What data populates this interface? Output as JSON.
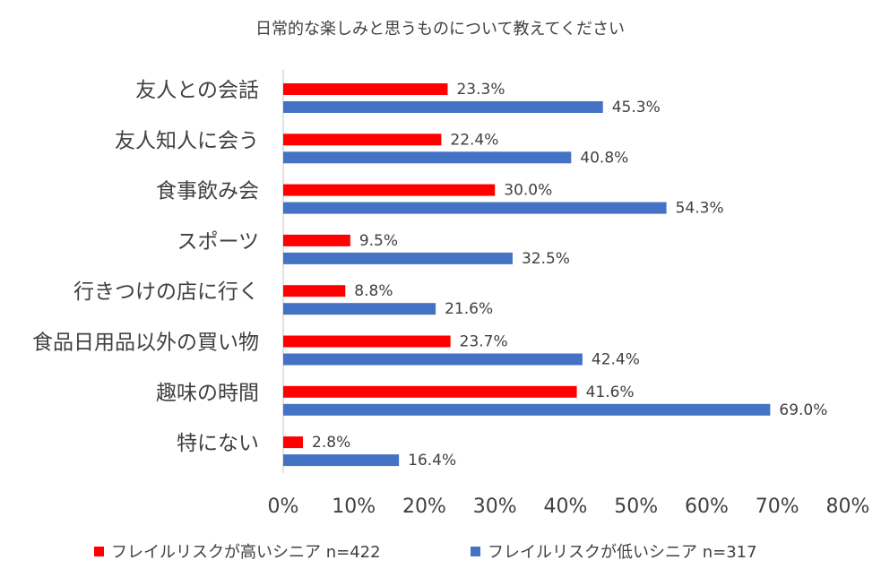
{
  "chart_data": {
    "type": "bar",
    "orientation": "horizontal",
    "title": "日常的な楽しみと思うものについて教えてください",
    "categories": [
      "友人との会話",
      "友人知人に会う",
      "食事飲み会",
      "スポーツ",
      "行きつけの店に行く",
      "食品日用品以外の買い物",
      "趣味の時間",
      "特にない"
    ],
    "series": [
      {
        "name": "フレイルリスクが高いシニア n=422",
        "color": "#ff0000",
        "values": [
          23.3,
          22.4,
          30.0,
          9.5,
          8.8,
          23.7,
          41.6,
          2.8
        ],
        "labels": [
          "23.3%",
          "22.4%",
          "30.0%",
          "9.5%",
          "8.8%",
          "23.7%",
          "41.6%",
          "2.8%"
        ]
      },
      {
        "name": "フレイルリスクが低いシニア n=317",
        "color": "#4472c4",
        "values": [
          45.3,
          40.8,
          54.3,
          32.5,
          21.6,
          42.4,
          69.0,
          16.4
        ],
        "labels": [
          "45.3%",
          "40.8%",
          "54.3%",
          "32.5%",
          "21.6%",
          "42.4%",
          "69.0%",
          "16.4%"
        ]
      }
    ],
    "xlim": [
      0,
      80
    ],
    "xticks": [
      "0%",
      "10%",
      "20%",
      "30%",
      "40%",
      "50%",
      "60%",
      "70%",
      "80%"
    ],
    "xlabel": "",
    "ylabel": "",
    "grid": false,
    "legend_position": "bottom"
  }
}
